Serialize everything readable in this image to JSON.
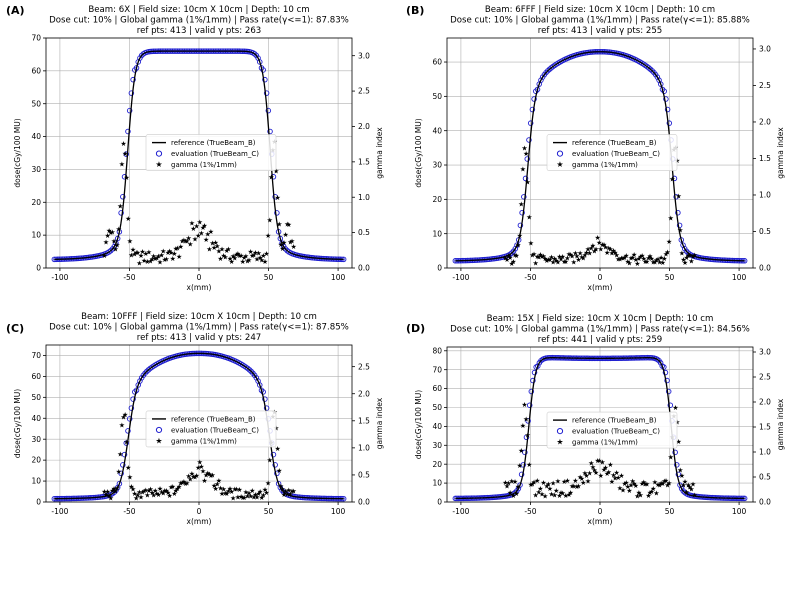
{
  "figure": {
    "background": "#ffffff"
  },
  "colors": {
    "reference": "#000000",
    "evaluation": "#1f1fd0",
    "gamma": "#e01010",
    "grid": "#b0b0b0"
  },
  "chart_data": [
    {
      "panel": "(A)",
      "type": "line",
      "title_lines": [
        "Beam: 6X | Field size: 10cm X 10cm | Depth: 10 cm",
        "Dose cut: 10% | Global gamma (1%/1mm) | Pass rate(γ<=1): 87.83%",
        "ref pts: 413 | valid γ pts: 263"
      ],
      "xlabel": "x(mm)",
      "ylabel": "dose(cGy/100 MU)",
      "y2label": "gamma index",
      "xlim": [
        -110,
        110
      ],
      "ylim": [
        0,
        70
      ],
      "y2lim": [
        0,
        3.25
      ],
      "xticks": [
        -100,
        -50,
        0,
        50,
        100
      ],
      "yticks": [
        0,
        10,
        20,
        30,
        40,
        50,
        60,
        70
      ],
      "y2ticks": [
        0.0,
        0.5,
        1.0,
        1.5,
        2.0,
        2.5,
        3.0
      ],
      "legend": [
        "reference (TrueBeam_B)",
        "evaluation (TrueBeam_C)",
        "gamma (1%/1mm)"
      ],
      "profile": {
        "center_dose": 66,
        "shoulder_dose": 66,
        "tail_start": 2.5,
        "tail_mid": 8,
        "edge_mm": 51,
        "penumbra_mm": 2.6
      },
      "gamma": {
        "peaks": [
          [
            -54,
            1.6
          ],
          [
            -64,
            0.4
          ],
          [
            54,
            1.6
          ],
          [
            64,
            0.4
          ]
        ],
        "center_bump": [
          0,
          0.45
        ],
        "baseline": 0.2
      }
    },
    {
      "panel": "(B)",
      "type": "line",
      "title_lines": [
        "Beam: 6FFF | Field size: 10cm X 10cm | Depth: 10 cm",
        "Dose cut: 10% | Global gamma (1%/1mm) | Pass rate(γ<=1): 85.88%",
        "ref pts: 413 | valid γ pts: 255"
      ],
      "xlabel": "x(mm)",
      "ylabel": "dose(cGy/100 MU)",
      "y2label": "gamma index",
      "xlim": [
        -110,
        110
      ],
      "ylim": [
        0,
        67
      ],
      "y2lim": [
        0,
        3.15
      ],
      "xticks": [
        -100,
        -50,
        0,
        50,
        100
      ],
      "yticks": [
        0,
        10,
        20,
        30,
        40,
        50,
        60
      ],
      "y2ticks": [
        0.0,
        0.5,
        1.0,
        1.5,
        2.0,
        2.5,
        3.0
      ],
      "legend": [
        "reference (TrueBeam_B)",
        "evaluation (TrueBeam_C)",
        "gamma (1%/1mm)"
      ],
      "profile": {
        "center_dose": 63,
        "shoulder_dose": 52,
        "tail_start": 2,
        "tail_mid": 6,
        "edge_mm": 52,
        "penumbra_mm": 2.6
      },
      "gamma": {
        "peaks": [
          [
            -54,
            1.6
          ],
          [
            54,
            1.6
          ]
        ],
        "center_bump": [
          0,
          0.25
        ],
        "baseline": 0.15
      }
    },
    {
      "panel": "(C)",
      "type": "line",
      "title_lines": [
        "Beam: 10FFF | Field size: 10cm X 10cm | Depth: 10 cm",
        "Dose cut: 10% | Global gamma (1%/1mm) | Pass rate(γ<=1): 87.85%",
        "ref pts: 413 | valid γ pts: 247"
      ],
      "xlabel": "x(mm)",
      "ylabel": "dose(cGy/100 MU)",
      "y2label": "gamma index",
      "xlim": [
        -110,
        110
      ],
      "ylim": [
        0,
        75
      ],
      "y2lim": [
        0,
        2.9
      ],
      "xticks": [
        -100,
        -50,
        0,
        50,
        100
      ],
      "yticks": [
        0,
        10,
        20,
        30,
        40,
        50,
        60,
        70
      ],
      "y2ticks": [
        0.0,
        0.5,
        1.0,
        1.5,
        2.0,
        2.5
      ],
      "legend": [
        "reference (TrueBeam_B)",
        "evaluation (TrueBeam_C)",
        "gamma (1%/1mm)"
      ],
      "profile": {
        "center_dose": 71,
        "shoulder_dose": 55,
        "tail_start": 1.5,
        "tail_mid": 5,
        "edge_mm": 51,
        "penumbra_mm": 2.8
      },
      "gamma": {
        "peaks": [
          [
            -54,
            1.5
          ],
          [
            54,
            1.5
          ]
        ],
        "center_bump": [
          0,
          0.55
        ],
        "baseline": 0.2
      }
    },
    {
      "panel": "(D)",
      "type": "line",
      "title_lines": [
        "Beam: 15X | Field size: 10cm X 10cm | Depth: 10 cm",
        "Dose cut: 10% | Global gamma (1%/1mm) | Pass rate(γ<=1): 84.56%",
        "ref pts: 441 | valid γ pts: 259"
      ],
      "xlabel": "x(mm)",
      "ylabel": "dose(cGy/100 MU)",
      "y2label": "gamma index",
      "xlim": [
        -110,
        110
      ],
      "ylim": [
        0,
        82
      ],
      "y2lim": [
        0,
        3.1
      ],
      "xticks": [
        -100,
        -50,
        0,
        50,
        100
      ],
      "yticks": [
        0,
        10,
        20,
        30,
        40,
        50,
        60,
        70,
        80
      ],
      "y2ticks": [
        0.0,
        0.5,
        1.0,
        1.5,
        2.0,
        2.5,
        3.0
      ],
      "legend": [
        "reference (TrueBeam_B)",
        "evaluation (TrueBeam_C)",
        "gamma (1%/1mm)"
      ],
      "profile": {
        "center_dose": 76,
        "shoulder_dose": 77,
        "tail_start": 1.8,
        "tail_mid": 6,
        "edge_mm": 51,
        "penumbra_mm": 2.4
      },
      "gamma": {
        "peaks": [
          [
            -54,
            1.6
          ],
          [
            54,
            1.6
          ]
        ],
        "center_bump": [
          0,
          0.5
        ],
        "baseline": 0.35
      }
    }
  ]
}
